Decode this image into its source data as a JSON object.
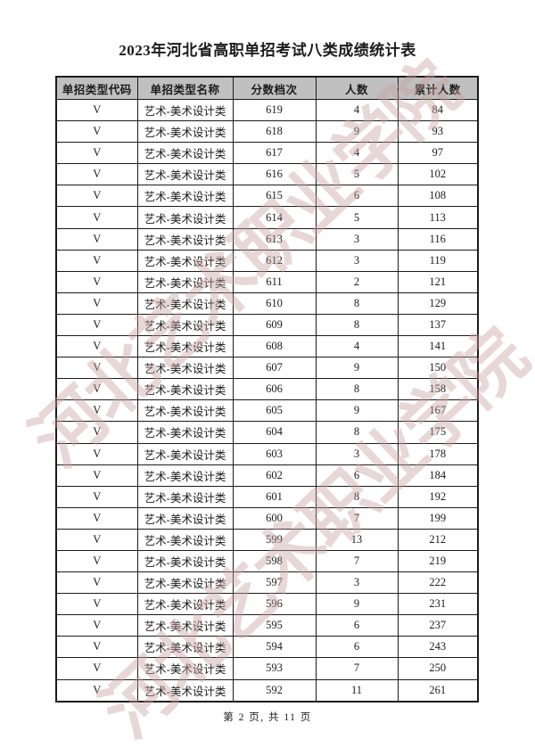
{
  "page": {
    "title": "2023年河北省高职单招考试八类成绩统计表",
    "footer": "第 2 页, 共 11 页",
    "watermark": {
      "text": "河北艺术职业学院",
      "color": "#c9a2a2"
    }
  },
  "table": {
    "headers": [
      "单招类型代码",
      "单招类型名称",
      "分数档次",
      "人数",
      "累计人数"
    ],
    "rows": [
      [
        "V",
        "艺术-美术设计类",
        "619",
        "4",
        "84"
      ],
      [
        "V",
        "艺术-美术设计类",
        "618",
        "9",
        "93"
      ],
      [
        "V",
        "艺术-美术设计类",
        "617",
        "4",
        "97"
      ],
      [
        "V",
        "艺术-美术设计类",
        "616",
        "5",
        "102"
      ],
      [
        "V",
        "艺术-美术设计类",
        "615",
        "6",
        "108"
      ],
      [
        "V",
        "艺术-美术设计类",
        "614",
        "5",
        "113"
      ],
      [
        "V",
        "艺术-美术设计类",
        "613",
        "3",
        "116"
      ],
      [
        "V",
        "艺术-美术设计类",
        "612",
        "3",
        "119"
      ],
      [
        "V",
        "艺术-美术设计类",
        "611",
        "2",
        "121"
      ],
      [
        "V",
        "艺术-美术设计类",
        "610",
        "8",
        "129"
      ],
      [
        "V",
        "艺术-美术设计类",
        "609",
        "8",
        "137"
      ],
      [
        "V",
        "艺术-美术设计类",
        "608",
        "4",
        "141"
      ],
      [
        "V",
        "艺术-美术设计类",
        "607",
        "9",
        "150"
      ],
      [
        "V",
        "艺术-美术设计类",
        "606",
        "8",
        "158"
      ],
      [
        "V",
        "艺术-美术设计类",
        "605",
        "9",
        "167"
      ],
      [
        "V",
        "艺术-美术设计类",
        "604",
        "8",
        "175"
      ],
      [
        "V",
        "艺术-美术设计类",
        "603",
        "3",
        "178"
      ],
      [
        "V",
        "艺术-美术设计类",
        "602",
        "6",
        "184"
      ],
      [
        "V",
        "艺术-美术设计类",
        "601",
        "8",
        "192"
      ],
      [
        "V",
        "艺术-美术设计类",
        "600",
        "7",
        "199"
      ],
      [
        "V",
        "艺术-美术设计类",
        "599",
        "13",
        "212"
      ],
      [
        "V",
        "艺术-美术设计类",
        "598",
        "7",
        "219"
      ],
      [
        "V",
        "艺术-美术设计类",
        "597",
        "3",
        "222"
      ],
      [
        "V",
        "艺术-美术设计类",
        "596",
        "9",
        "231"
      ],
      [
        "V",
        "艺术-美术设计类",
        "595",
        "6",
        "237"
      ],
      [
        "V",
        "艺术-美术设计类",
        "594",
        "6",
        "243"
      ],
      [
        "V",
        "艺术-美术设计类",
        "593",
        "7",
        "250"
      ],
      [
        "V",
        "艺术-美术设计类",
        "592",
        "11",
        "261"
      ]
    ]
  }
}
